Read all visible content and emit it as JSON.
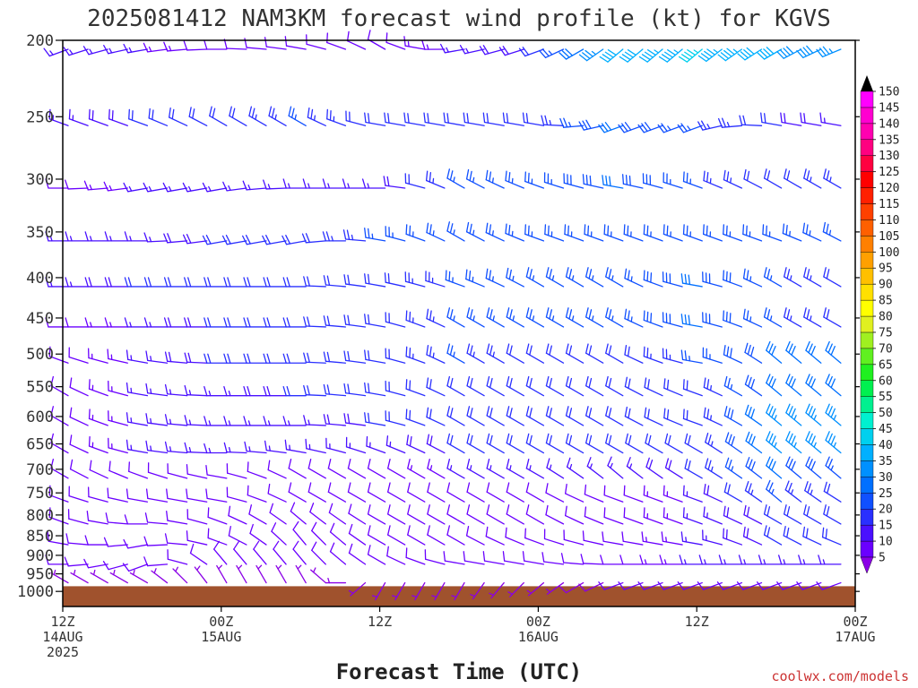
{
  "chart_data": {
    "type": "wind-barb-time-height",
    "title": "2025081412 NAM3KM forecast wind profile (kt) for KGVS",
    "xlabel": "Forecast Time (UTC)",
    "ylabel": "",
    "credit": "coolwx.com/models",
    "y_axis": {
      "unit": "hPa",
      "scale": "log",
      "range": [
        1000,
        200
      ],
      "ticks": [
        200,
        250,
        300,
        350,
        400,
        450,
        500,
        550,
        600,
        650,
        700,
        750,
        800,
        850,
        900,
        950,
        1000
      ]
    },
    "x_axis": {
      "range_hours": [
        0,
        60
      ],
      "ticks": [
        {
          "hour": 0,
          "lines": [
            "12Z",
            "14AUG",
            "2025"
          ]
        },
        {
          "hour": 12,
          "lines": [
            "00Z",
            "15AUG"
          ]
        },
        {
          "hour": 24,
          "lines": [
            "12Z"
          ]
        },
        {
          "hour": 36,
          "lines": [
            "00Z",
            "16AUG"
          ]
        },
        {
          "hour": 48,
          "lines": [
            "12Z"
          ]
        },
        {
          "hour": 60,
          "lines": [
            "00Z",
            "17AUG"
          ]
        }
      ]
    },
    "colorbar": {
      "unit": "kt",
      "ticks": [
        5,
        10,
        15,
        20,
        25,
        30,
        35,
        40,
        45,
        50,
        55,
        60,
        65,
        70,
        75,
        80,
        85,
        90,
        95,
        100,
        105,
        110,
        115,
        120,
        125,
        130,
        135,
        140,
        145,
        150
      ],
      "colors": [
        "#8a00e6",
        "#6a00ff",
        "#4a10ff",
        "#2a30ff",
        "#1050ff",
        "#0070ff",
        "#0090ff",
        "#00b0ff",
        "#00d0ee",
        "#00f0d0",
        "#00f090",
        "#00f050",
        "#20f020",
        "#60f020",
        "#a0f020",
        "#e0f020",
        "#ffff00",
        "#ffe000",
        "#ffc000",
        "#ffa000",
        "#ff8000",
        "#ff6000",
        "#ff4000",
        "#ff2000",
        "#ff0000",
        "#ff0040",
        "#ff0080",
        "#ff00b0",
        "#ff00d0",
        "#ff00ff"
      ]
    },
    "ground": {
      "color": "#a0522d",
      "pressure_hpa": 985
    },
    "barb_series": [
      {
        "pressure": 200,
        "hours": [
          0,
          6,
          12,
          18,
          24,
          30,
          36,
          42,
          48,
          54,
          60
        ],
        "speeds_kt": [
          15,
          15,
          10,
          10,
          10,
          15,
          20,
          40,
          45,
          40,
          35
        ],
        "dirs_deg": [
          250,
          260,
          270,
          280,
          300,
          260,
          250,
          230,
          230,
          240,
          250
        ]
      },
      {
        "pressure": 250,
        "hours": [
          0,
          6,
          12,
          18,
          24,
          30,
          36,
          42,
          48,
          54,
          60
        ],
        "speeds_kt": [
          15,
          20,
          20,
          25,
          20,
          20,
          20,
          30,
          25,
          20,
          15
        ],
        "dirs_deg": [
          290,
          290,
          300,
          300,
          280,
          280,
          280,
          250,
          250,
          280,
          280
        ]
      },
      {
        "pressure": 300,
        "hours": [
          0,
          6,
          12,
          18,
          24,
          30,
          36,
          42,
          48,
          54,
          60
        ],
        "speeds_kt": [
          10,
          15,
          15,
          15,
          15,
          25,
          25,
          30,
          25,
          20,
          25
        ],
        "dirs_deg": [
          270,
          260,
          260,
          270,
          270,
          300,
          290,
          280,
          290,
          300,
          300
        ]
      },
      {
        "pressure": 350,
        "hours": [
          0,
          6,
          12,
          18,
          24,
          30,
          36,
          42,
          48,
          54,
          60
        ],
        "speeds_kt": [
          15,
          15,
          20,
          20,
          25,
          25,
          25,
          25,
          25,
          25,
          25
        ],
        "dirs_deg": [
          270,
          270,
          260,
          260,
          280,
          300,
          290,
          290,
          290,
          290,
          300
        ]
      },
      {
        "pressure": 400,
        "hours": [
          0,
          6,
          12,
          18,
          24,
          30,
          36,
          42,
          48,
          54,
          60
        ],
        "speeds_kt": [
          15,
          20,
          20,
          20,
          20,
          25,
          25,
          25,
          30,
          25,
          20
        ],
        "dirs_deg": [
          270,
          270,
          270,
          270,
          280,
          290,
          300,
          300,
          280,
          300,
          300
        ]
      },
      {
        "pressure": 450,
        "hours": [
          0,
          6,
          12,
          18,
          24,
          30,
          36,
          42,
          48,
          54,
          60
        ],
        "speeds_kt": [
          10,
          15,
          20,
          20,
          20,
          25,
          25,
          25,
          30,
          25,
          20
        ],
        "dirs_deg": [
          270,
          270,
          270,
          270,
          280,
          300,
          300,
          300,
          280,
          300,
          300
        ]
      },
      {
        "pressure": 500,
        "hours": [
          0,
          6,
          12,
          18,
          24,
          30,
          36,
          42,
          48,
          54,
          60
        ],
        "speeds_kt": [
          10,
          15,
          20,
          20,
          20,
          25,
          20,
          20,
          25,
          30,
          30
        ],
        "dirs_deg": [
          290,
          280,
          270,
          270,
          280,
          300,
          300,
          300,
          280,
          310,
          310
        ]
      },
      {
        "pressure": 550,
        "hours": [
          0,
          6,
          12,
          18,
          24,
          30,
          36,
          42,
          48,
          54,
          60
        ],
        "speeds_kt": [
          10,
          15,
          15,
          20,
          20,
          20,
          20,
          20,
          20,
          30,
          30
        ],
        "dirs_deg": [
          300,
          280,
          270,
          270,
          280,
          300,
          300,
          300,
          290,
          310,
          310
        ]
      },
      {
        "pressure": 600,
        "hours": [
          0,
          6,
          12,
          18,
          24,
          30,
          36,
          42,
          48,
          54,
          60
        ],
        "speeds_kt": [
          10,
          15,
          15,
          15,
          20,
          20,
          20,
          20,
          20,
          35,
          35
        ],
        "dirs_deg": [
          300,
          280,
          270,
          270,
          280,
          300,
          300,
          300,
          290,
          310,
          310
        ]
      },
      {
        "pressure": 650,
        "hours": [
          0,
          6,
          12,
          18,
          24,
          30,
          36,
          42,
          48,
          54,
          60
        ],
        "speeds_kt": [
          10,
          15,
          15,
          15,
          15,
          20,
          20,
          20,
          20,
          35,
          35
        ],
        "dirs_deg": [
          300,
          280,
          270,
          280,
          290,
          300,
          300,
          300,
          300,
          310,
          310
        ]
      },
      {
        "pressure": 700,
        "hours": [
          0,
          6,
          12,
          18,
          24,
          30,
          36,
          42,
          48,
          54,
          60
        ],
        "speeds_kt": [
          10,
          10,
          10,
          10,
          10,
          15,
          15,
          15,
          20,
          30,
          25
        ],
        "dirs_deg": [
          300,
          290,
          280,
          300,
          300,
          300,
          300,
          310,
          300,
          310,
          310
        ]
      },
      {
        "pressure": 750,
        "hours": [
          0,
          6,
          12,
          18,
          24,
          30,
          36,
          42,
          48,
          54,
          60
        ],
        "speeds_kt": [
          10,
          10,
          10,
          10,
          10,
          10,
          10,
          10,
          15,
          25,
          20
        ],
        "dirs_deg": [
          290,
          280,
          280,
          300,
          300,
          300,
          300,
          290,
          290,
          310,
          300
        ]
      },
      {
        "pressure": 800,
        "hours": [
          0,
          6,
          12,
          18,
          24,
          30,
          36,
          42,
          48,
          54,
          60
        ],
        "speeds_kt": [
          10,
          10,
          10,
          10,
          10,
          10,
          10,
          10,
          15,
          20,
          20
        ],
        "dirs_deg": [
          290,
          270,
          290,
          310,
          300,
          300,
          300,
          290,
          290,
          300,
          300
        ]
      },
      {
        "pressure": 850,
        "hours": [
          0,
          6,
          12,
          18,
          24,
          30,
          36,
          42,
          48,
          54,
          60
        ],
        "speeds_kt": [
          10,
          10,
          10,
          10,
          10,
          10,
          10,
          10,
          15,
          20,
          20
        ],
        "dirs_deg": [
          280,
          260,
          290,
          320,
          300,
          300,
          290,
          280,
          280,
          300,
          290
        ]
      },
      {
        "pressure": 900,
        "hours": [
          0,
          6,
          12,
          18,
          24,
          30,
          36,
          42,
          48,
          54,
          60
        ],
        "speeds_kt": [
          10,
          10,
          10,
          10,
          10,
          10,
          10,
          10,
          15,
          15,
          15
        ],
        "dirs_deg": [
          270,
          250,
          320,
          320,
          300,
          280,
          280,
          270,
          270,
          270,
          270
        ]
      },
      {
        "pressure": 950,
        "hours": [
          0,
          6,
          12,
          18,
          24,
          30,
          36,
          42,
          48,
          54,
          60
        ],
        "speeds_kt": [
          5,
          5,
          5,
          5,
          5,
          5,
          5,
          10,
          10,
          10,
          10
        ],
        "dirs_deg": [
          300,
          300,
          330,
          330,
          210,
          210,
          230,
          250,
          250,
          250,
          250
        ]
      }
    ]
  }
}
